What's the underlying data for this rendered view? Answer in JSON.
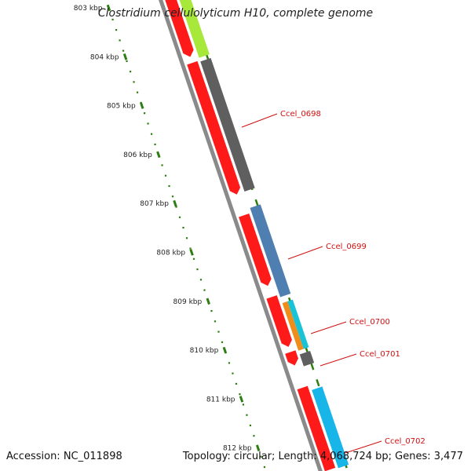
{
  "title": "Clostridium cellulolyticum H10, complete genome",
  "footer": {
    "accession": "Accession: NC_011898",
    "summary": "Topology: circular; Length: 4,068,724 bp; Genes: 3,477"
  },
  "ruler": {
    "ticks": [
      "803 kbp",
      "804 kbp",
      "805 kbp",
      "806 kbp",
      "807 kbp",
      "808 kbp",
      "809 kbp",
      "810 kbp",
      "811 kbp",
      "812 kbp"
    ],
    "dot_color": "#2e7d12"
  },
  "genes": [
    {
      "id": "Ccel_0698",
      "label": "Ccel_0698",
      "feature_color": "#5f5f5f"
    },
    {
      "id": "Ccel_0699",
      "label": "Ccel_0699",
      "feature_color": "#4f7fb0"
    },
    {
      "id": "Ccel_0700",
      "label": "Ccel_0700",
      "feature_color": "#f08c1a"
    },
    {
      "id": "Ccel_0701",
      "label": "Ccel_0701",
      "feature_color": "#5f5f5f"
    },
    {
      "id": "Ccel_0702",
      "label": "Ccel_0702",
      "feature_color": "#17b5e8"
    }
  ],
  "colors": {
    "cds": "#ff1a1a",
    "label_text": "#d01010",
    "backbone": "#8a8a8a",
    "upstream_feature": "#a8e83a",
    "upstream_top": "#f2e48a",
    "cyan_feature": "#19c3d6"
  }
}
